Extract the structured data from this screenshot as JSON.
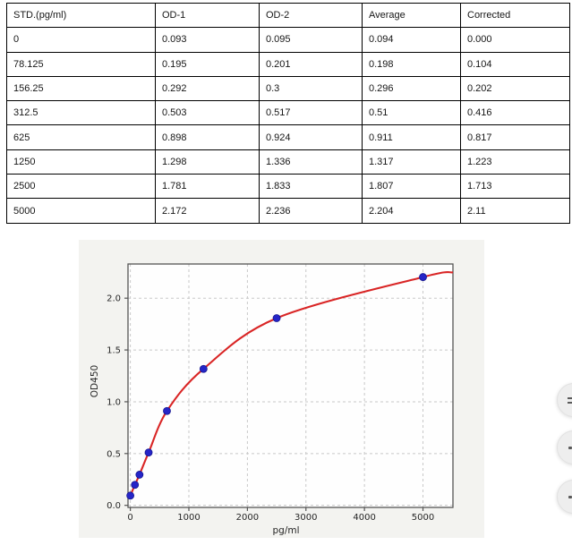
{
  "table": {
    "headers": [
      "STD.(pg/ml)",
      "OD-1",
      "OD-2",
      "Average",
      "Corrected"
    ],
    "rows": [
      [
        "0",
        "0.093",
        "0.095",
        "0.094",
        "0.000"
      ],
      [
        "78.125",
        "0.195",
        "0.201",
        "0.198",
        "0.104"
      ],
      [
        "156.25",
        "0.292",
        "0.3",
        "0.296",
        "0.202"
      ],
      [
        "312.5",
        "0.503",
        "0.517",
        "0.51",
        "0.416"
      ],
      [
        "625",
        "0.898",
        "0.924",
        "0.911",
        "0.817"
      ],
      [
        "1250",
        "1.298",
        "1.336",
        "1.317",
        "1.223"
      ],
      [
        "2500",
        "1.781",
        "1.833",
        "1.807",
        "1.713"
      ],
      [
        "5000",
        "2.172",
        "2.236",
        "2.204",
        "2.11"
      ]
    ]
  },
  "chart_data": {
    "type": "scatter",
    "title": "",
    "xlabel": "pg/ml",
    "ylabel": "OD450",
    "x": [
      0,
      78.125,
      156.25,
      312.5,
      625,
      1250,
      2500,
      5000
    ],
    "y": [
      0.094,
      0.198,
      0.296,
      0.51,
      0.911,
      1.317,
      1.807,
      2.204
    ],
    "fit_curve": true,
    "curve_end": {
      "x": 5512,
      "y": 2.25
    },
    "xlim": [
      -40,
      5512
    ],
    "ylim": [
      -0.02,
      2.33
    ],
    "xticks": [
      0,
      1000,
      2000,
      3000,
      4000,
      5000
    ],
    "xtick_labels": [
      "0",
      "1000",
      "2000",
      "3000",
      "4000",
      "5000"
    ],
    "yticks": [
      0,
      0.5,
      1.0,
      1.5,
      2.0
    ],
    "ytick_labels": [
      "0.0",
      "0.5",
      "1.0",
      "1.5",
      "2.0"
    ],
    "grid": true,
    "legend": "none",
    "colors": {
      "point": "#2525c8",
      "point_edge": "#15158f",
      "curve": "#d92525",
      "grid": "#c8c8c8",
      "spine": "#555555",
      "figure_bg": "#f3f3f0",
      "plot_bg": "#fefefe",
      "tick_label": "#262626"
    }
  },
  "floating_buttons": [
    {
      "icon": "menu-lines-icon"
    },
    {
      "icon": "dot-icon"
    },
    {
      "icon": "dot-icon"
    }
  ]
}
